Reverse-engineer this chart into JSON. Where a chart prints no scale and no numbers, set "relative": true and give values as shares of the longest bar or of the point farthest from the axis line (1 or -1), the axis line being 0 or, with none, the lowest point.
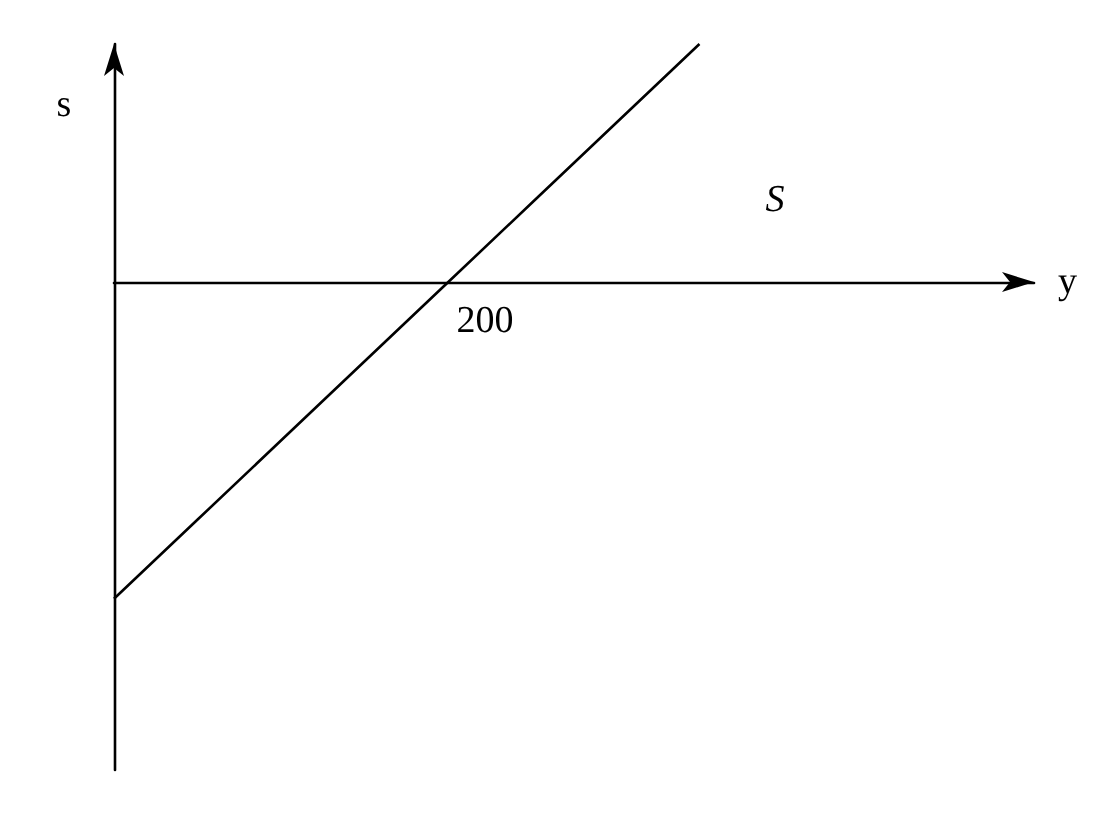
{
  "chart_data": {
    "type": "line",
    "xlabel": "y",
    "ylabel": "s",
    "relative": true,
    "categories": [
      null,
      null,
      null,
      null,
      null,
      null,
      null,
      null,
      null,
      null,
      null,
      null
    ],
    "marker": "none",
    "grid": false,
    "legend": false,
    "annotations": [
      "200"
    ],
    "series": [
      {
        "name": "S",
        "color": "#000000",
        "values": [
          -1,
          -0.75,
          -0.5,
          -0.25,
          0,
          0.25,
          0.5,
          0.75,
          null,
          null,
          null,
          null
        ]
      }
    ]
  }
}
